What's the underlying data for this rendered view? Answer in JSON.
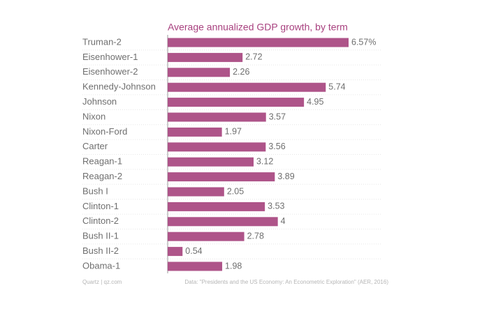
{
  "chart_data": {
    "type": "bar",
    "orientation": "horizontal",
    "title": "Average annualized GDP growth, by term",
    "categories": [
      "Truman-2",
      "Eisenhower-1",
      "Eisenhower-2",
      "Kennedy-Johnson",
      "Johnson",
      "Nixon",
      "Nixon-Ford",
      "Carter",
      "Reagan-1",
      "Reagan-2",
      "Bush I",
      "Clinton-1",
      "Clinton-2",
      "Bush II-1",
      "Bush II-2",
      "Obama-1"
    ],
    "values": [
      6.57,
      2.72,
      2.26,
      5.74,
      4.95,
      3.57,
      1.97,
      3.56,
      3.12,
      3.89,
      2.05,
      3.53,
      4,
      2.78,
      0.54,
      1.98
    ],
    "value_labels": [
      "6.57%",
      "2.72",
      "2.26",
      "5.74",
      "4.95",
      "3.57",
      "1.97",
      "3.56",
      "3.12",
      "3.89",
      "2.05",
      "3.53",
      "4",
      "2.78",
      "0.54",
      "1.98"
    ],
    "color": "#ae5489",
    "source": "Quartz | qz.com",
    "note": "Data: \"Presidents and the US Economy: An Econometric Exploration\" (AER, 2016)"
  }
}
